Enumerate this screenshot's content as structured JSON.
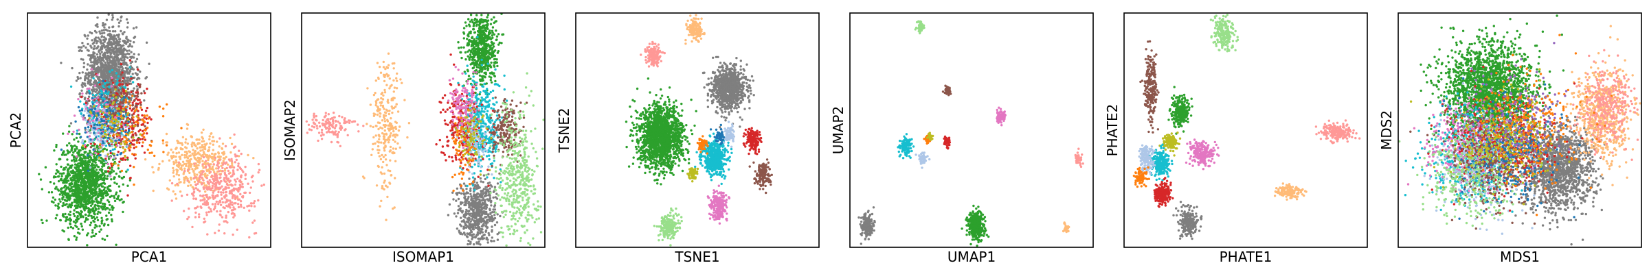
{
  "palette": {
    "c0": "#1f77b4",
    "c1": "#aec7e8",
    "c2": "#ff7f0e",
    "c3": "#ffbb78",
    "c4": "#2ca02c",
    "c5": "#98df8a",
    "c6": "#d62728",
    "c7": "#ff9896",
    "c8": "#9467bd",
    "c9": "#c5b0d5",
    "c10": "#8c564b",
    "c11": "#c49c94",
    "c12": "#e377c2",
    "c13": "#f7b6d2",
    "c14": "#7f7f7f",
    "c15": "#c7c7c7",
    "c16": "#bcbd22",
    "c17": "#dbdb8d",
    "c18": "#17becf",
    "c19": "#9edae5"
  },
  "chart_data": [
    {
      "type": "scatter",
      "title": "",
      "xlabel": "PCA1",
      "ylabel": "PCA2",
      "xlim": [
        0,
        100
      ],
      "ylim": [
        0,
        100
      ],
      "grid": false,
      "legend": "none",
      "ticks": "none",
      "clusters": [
        {
          "color": "c14",
          "cx": 34,
          "cy": 74,
          "sx": 5,
          "sy": 10,
          "n": 1400
        },
        {
          "color": "c4",
          "cx": 24,
          "cy": 27,
          "sx": 6,
          "sy": 9,
          "n": 1300
        },
        {
          "color": "c18",
          "cx": 33,
          "cy": 57,
          "sx": 5,
          "sy": 7,
          "n": 250
        },
        {
          "color": "c6",
          "cx": 40,
          "cy": 53,
          "sx": 6,
          "sy": 9,
          "n": 250
        },
        {
          "color": "c12",
          "cx": 30,
          "cy": 55,
          "sx": 4,
          "sy": 7,
          "n": 120
        },
        {
          "color": "c10",
          "cx": 38,
          "cy": 60,
          "sx": 5,
          "sy": 7,
          "n": 120
        },
        {
          "color": "c1",
          "cx": 31,
          "cy": 50,
          "sx": 4,
          "sy": 6,
          "n": 120
        },
        {
          "color": "c0",
          "cx": 32,
          "cy": 52,
          "sx": 5,
          "sy": 7,
          "n": 120
        },
        {
          "color": "c2",
          "cx": 45,
          "cy": 48,
          "sx": 6,
          "sy": 8,
          "n": 80
        },
        {
          "color": "c16",
          "cx": 36,
          "cy": 52,
          "sx": 5,
          "sy": 7,
          "n": 80
        },
        {
          "color": "c3",
          "cx": 70,
          "cy": 36,
          "sx": 7,
          "sy": 6,
          "n": 400
        },
        {
          "color": "c7",
          "cx": 80,
          "cy": 25,
          "sx": 7,
          "sy": 7,
          "n": 400
        }
      ]
    },
    {
      "type": "scatter",
      "title": "",
      "xlabel": "ISOMAP1",
      "ylabel": "ISOMAP2",
      "xlim": [
        0,
        100
      ],
      "ylim": [
        0,
        100
      ],
      "grid": false,
      "legend": "none",
      "ticks": "none",
      "clusters": [
        {
          "color": "c4",
          "cx": 74,
          "cy": 85,
          "sx": 3,
          "sy": 8,
          "n": 600
        },
        {
          "color": "c14",
          "cx": 72,
          "cy": 15,
          "sx": 4,
          "sy": 7,
          "n": 600
        },
        {
          "color": "c18",
          "cx": 74,
          "cy": 52,
          "sx": 4,
          "sy": 10,
          "n": 400
        },
        {
          "color": "c6",
          "cx": 66,
          "cy": 52,
          "sx": 4,
          "sy": 9,
          "n": 250
        },
        {
          "color": "c12",
          "cx": 67,
          "cy": 58,
          "sx": 3,
          "sy": 6,
          "n": 150
        },
        {
          "color": "c10",
          "cx": 84,
          "cy": 50,
          "sx": 3,
          "sy": 6,
          "n": 200
        },
        {
          "color": "c5",
          "cx": 89,
          "cy": 30,
          "sx": 4,
          "sy": 14,
          "n": 450
        },
        {
          "color": "c1",
          "cx": 72,
          "cy": 45,
          "sx": 3,
          "sy": 6,
          "n": 100
        },
        {
          "color": "c16",
          "cx": 70,
          "cy": 48,
          "sx": 3,
          "sy": 6,
          "n": 80
        },
        {
          "color": "c2",
          "cx": 66,
          "cy": 40,
          "sx": 3,
          "sy": 8,
          "n": 60
        },
        {
          "color": "c3",
          "cx": 35,
          "cy": 52,
          "sx": 3,
          "sy": 14,
          "n": 250
        },
        {
          "color": "c7",
          "cx": 12,
          "cy": 52,
          "sx": 5,
          "sy": 3,
          "n": 120
        }
      ]
    },
    {
      "type": "scatter",
      "title": "",
      "xlabel": "TSNE1",
      "ylabel": "TSNE2",
      "xlim": [
        0,
        100
      ],
      "ylim": [
        0,
        100
      ],
      "grid": false,
      "legend": "none",
      "ticks": "none",
      "clusters": [
        {
          "color": "c4",
          "cx": 35,
          "cy": 47,
          "sx": 4.5,
          "sy": 6.5,
          "n": 1600
        },
        {
          "color": "c14",
          "cx": 63,
          "cy": 68,
          "sx": 3.4,
          "sy": 4.5,
          "n": 900
        },
        {
          "color": "c18",
          "cx": 57,
          "cy": 38,
          "sx": 2.5,
          "sy": 3.5,
          "n": 500
        },
        {
          "color": "c7",
          "cx": 32,
          "cy": 82,
          "sx": 1.5,
          "sy": 2.2,
          "n": 150
        },
        {
          "color": "c3",
          "cx": 49,
          "cy": 93,
          "sx": 1.5,
          "sy": 2.2,
          "n": 150
        },
        {
          "color": "c5",
          "cx": 38,
          "cy": 9,
          "sx": 2,
          "sy": 2.8,
          "n": 200
        },
        {
          "color": "c12",
          "cx": 59,
          "cy": 18,
          "sx": 1.8,
          "sy": 3,
          "n": 200
        },
        {
          "color": "c6",
          "cx": 73,
          "cy": 46,
          "sx": 1.5,
          "sy": 2.5,
          "n": 150
        },
        {
          "color": "c10",
          "cx": 77,
          "cy": 31,
          "sx": 1.5,
          "sy": 2.5,
          "n": 150
        },
        {
          "color": "c1",
          "cx": 63,
          "cy": 48,
          "sx": 1.2,
          "sy": 2,
          "n": 80
        },
        {
          "color": "c0",
          "cx": 59,
          "cy": 47,
          "sx": 1,
          "sy": 1.6,
          "n": 60
        },
        {
          "color": "c2",
          "cx": 52,
          "cy": 44,
          "sx": 1,
          "sy": 1.5,
          "n": 50
        },
        {
          "color": "c16",
          "cx": 48,
          "cy": 31,
          "sx": 1,
          "sy": 1.5,
          "n": 50
        }
      ]
    },
    {
      "type": "scatter",
      "title": "",
      "xlabel": "UMAP1",
      "ylabel": "UMAP2",
      "xlim": [
        0,
        100
      ],
      "ylim": [
        0,
        100
      ],
      "grid": false,
      "legend": "none",
      "ticks": "none",
      "clusters": [
        {
          "color": "c14",
          "cx": 7,
          "cy": 9,
          "sx": 1.3,
          "sy": 2.6,
          "n": 200
        },
        {
          "color": "c4",
          "cx": 52,
          "cy": 9,
          "sx": 1.6,
          "sy": 3,
          "n": 400
        },
        {
          "color": "c18",
          "cx": 23,
          "cy": 43,
          "sx": 1.3,
          "sy": 1.8,
          "n": 120
        },
        {
          "color": "c1",
          "cx": 30,
          "cy": 38,
          "sx": 0.8,
          "sy": 1.5,
          "n": 60
        },
        {
          "color": "c2",
          "cx": 32,
          "cy": 46,
          "sx": 0.6,
          "sy": 1,
          "n": 40
        },
        {
          "color": "c16",
          "cx": 33,
          "cy": 47,
          "sx": 0.5,
          "sy": 0.8,
          "n": 20
        },
        {
          "color": "c6",
          "cx": 40,
          "cy": 45,
          "sx": 0.7,
          "sy": 1.2,
          "n": 50
        },
        {
          "color": "c10",
          "cx": 40,
          "cy": 67,
          "sx": 0.6,
          "sy": 1,
          "n": 50
        },
        {
          "color": "c5",
          "cx": 29,
          "cy": 94,
          "sx": 0.7,
          "sy": 1.2,
          "n": 60
        },
        {
          "color": "c12",
          "cx": 62,
          "cy": 56,
          "sx": 1.1,
          "sy": 1.4,
          "n": 80
        },
        {
          "color": "c7",
          "cx": 94,
          "cy": 38,
          "sx": 0.8,
          "sy": 1.2,
          "n": 40
        },
        {
          "color": "c3",
          "cx": 89,
          "cy": 8,
          "sx": 0.6,
          "sy": 1,
          "n": 30
        }
      ]
    },
    {
      "type": "scatter",
      "title": "",
      "xlabel": "PHATE1",
      "ylabel": "PHATE2",
      "xlim": [
        0,
        100
      ],
      "ylim": [
        0,
        100
      ],
      "grid": false,
      "legend": "none",
      "ticks": "none",
      "clusters": [
        {
          "color": "c5",
          "cx": 41,
          "cy": 91,
          "sx": 2.2,
          "sy": 3.5,
          "n": 200
        },
        {
          "color": "c7",
          "cx": 88,
          "cy": 49,
          "sx": 3.2,
          "sy": 1.8,
          "n": 200
        },
        {
          "color": "c3",
          "cx": 68,
          "cy": 24,
          "sx": 3,
          "sy": 1.3,
          "n": 150
        },
        {
          "color": "c10",
          "cx": 11,
          "cy": 68,
          "sx": 1.2,
          "sy": 6.5,
          "n": 220
        },
        {
          "color": "c4",
          "cx": 23,
          "cy": 58,
          "sx": 1.8,
          "sy": 3.2,
          "n": 250
        },
        {
          "color": "c12",
          "cx": 32,
          "cy": 40,
          "sx": 2.4,
          "sy": 2.6,
          "n": 200
        },
        {
          "color": "c16",
          "cx": 19,
          "cy": 45,
          "sx": 1.6,
          "sy": 1.6,
          "n": 120
        },
        {
          "color": "c18",
          "cx": 15,
          "cy": 36,
          "sx": 1.8,
          "sy": 2.8,
          "n": 220
        },
        {
          "color": "c1",
          "cx": 9,
          "cy": 38,
          "sx": 1.5,
          "sy": 3,
          "n": 150
        },
        {
          "color": "c2",
          "cx": 7,
          "cy": 30,
          "sx": 1.4,
          "sy": 2,
          "n": 80
        },
        {
          "color": "c6",
          "cx": 16,
          "cy": 23,
          "sx": 1.6,
          "sy": 2.2,
          "n": 200
        },
        {
          "color": "c14",
          "cx": 27,
          "cy": 11,
          "sx": 2.2,
          "sy": 3,
          "n": 200
        }
      ]
    },
    {
      "type": "scatter",
      "title": "",
      "xlabel": "MDS1",
      "ylabel": "MDS2",
      "xlim": [
        0,
        100
      ],
      "ylim": [
        0,
        100
      ],
      "grid": false,
      "legend": "none",
      "ticks": "none",
      "clusters": [
        {
          "color": "c4",
          "cx": 37,
          "cy": 67,
          "sx": 9,
          "sy": 10,
          "n": 2000
        },
        {
          "color": "c14",
          "cx": 66,
          "cy": 33,
          "sx": 7,
          "sy": 9,
          "n": 1400
        },
        {
          "color": "c3",
          "cx": 84,
          "cy": 57,
          "sx": 6,
          "sy": 10,
          "n": 600
        },
        {
          "color": "c7",
          "cx": 86,
          "cy": 60,
          "sx": 5,
          "sy": 8,
          "n": 300
        },
        {
          "color": "c18",
          "cx": 30,
          "cy": 40,
          "sx": 9,
          "sy": 10,
          "n": 500
        },
        {
          "color": "c12",
          "cx": 30,
          "cy": 43,
          "sx": 9,
          "sy": 9,
          "n": 400
        },
        {
          "color": "c1",
          "cx": 35,
          "cy": 37,
          "sx": 9,
          "sy": 10,
          "n": 400
        },
        {
          "color": "c6",
          "cx": 44,
          "cy": 45,
          "sx": 10,
          "sy": 10,
          "n": 400
        },
        {
          "color": "c10",
          "cx": 40,
          "cy": 38,
          "sx": 9,
          "sy": 10,
          "n": 400
        },
        {
          "color": "c0",
          "cx": 45,
          "cy": 40,
          "sx": 10,
          "sy": 11,
          "n": 300
        },
        {
          "color": "c5",
          "cx": 30,
          "cy": 30,
          "sx": 10,
          "sy": 10,
          "n": 300
        },
        {
          "color": "c16",
          "cx": 42,
          "cy": 46,
          "sx": 10,
          "sy": 10,
          "n": 300
        },
        {
          "color": "c2",
          "cx": 55,
          "cy": 52,
          "sx": 10,
          "sy": 11,
          "n": 250
        },
        {
          "color": "c8",
          "cx": 50,
          "cy": 55,
          "sx": 10,
          "sy": 10,
          "n": 150
        }
      ]
    }
  ]
}
